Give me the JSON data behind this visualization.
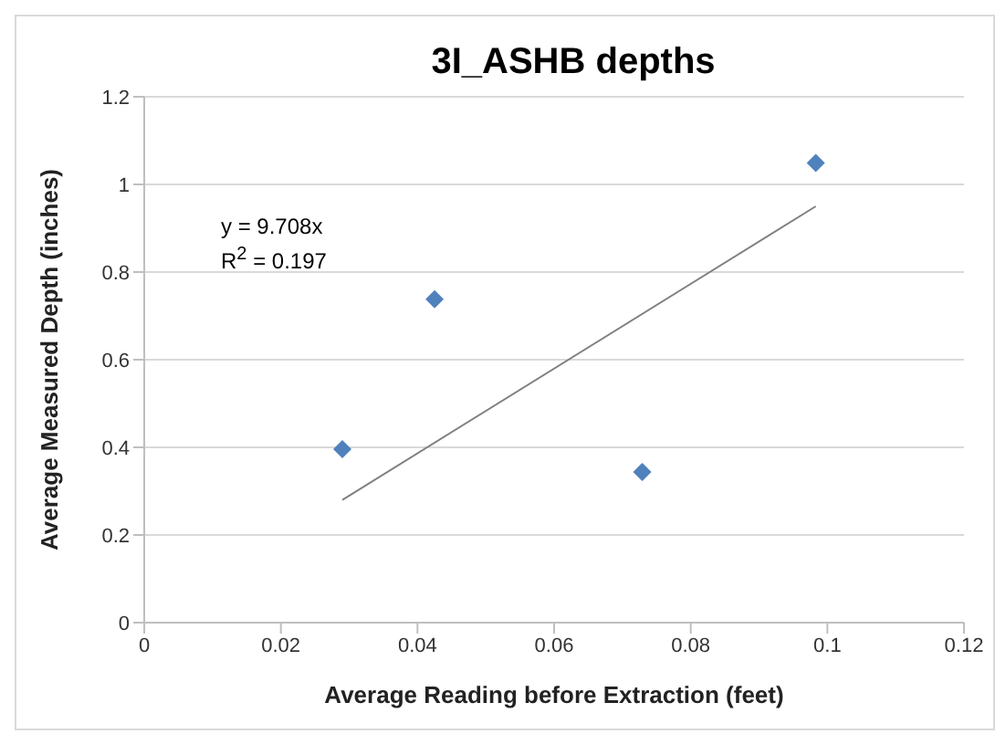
{
  "chart_data": {
    "type": "scatter",
    "title": "3I_ASHB depths",
    "xlabel": "Average Reading before Extraction (feet)",
    "ylabel": "Average Measured Depth (inches)",
    "xlim": [
      0,
      0.12
    ],
    "xticks": [
      0,
      0.02,
      0.04,
      0.06,
      0.08,
      0.1,
      0.12
    ],
    "ylim": [
      0,
      1.2
    ],
    "yticks": [
      0,
      0.2,
      0.4,
      0.6,
      0.8,
      1,
      1.2
    ],
    "grid": "y",
    "legend": false,
    "marker": "diamond",
    "annotations": [
      "y = 9.708x",
      "R$^{2}$ = 0.197"
    ],
    "series": [
      {
        "type": "scatter",
        "color": "#4f81bd",
        "x": [
          0.029,
          0.0425,
          0.0729,
          0.0983
        ],
        "values": [
          0.396,
          0.738,
          0.344,
          1.049
        ]
      },
      {
        "type": "line",
        "color": "#808080",
        "marker": "none",
        "line_style": "solid",
        "x": [
          0.029,
          0.0983
        ],
        "values": [
          0.28,
          0.95
        ]
      }
    ]
  }
}
